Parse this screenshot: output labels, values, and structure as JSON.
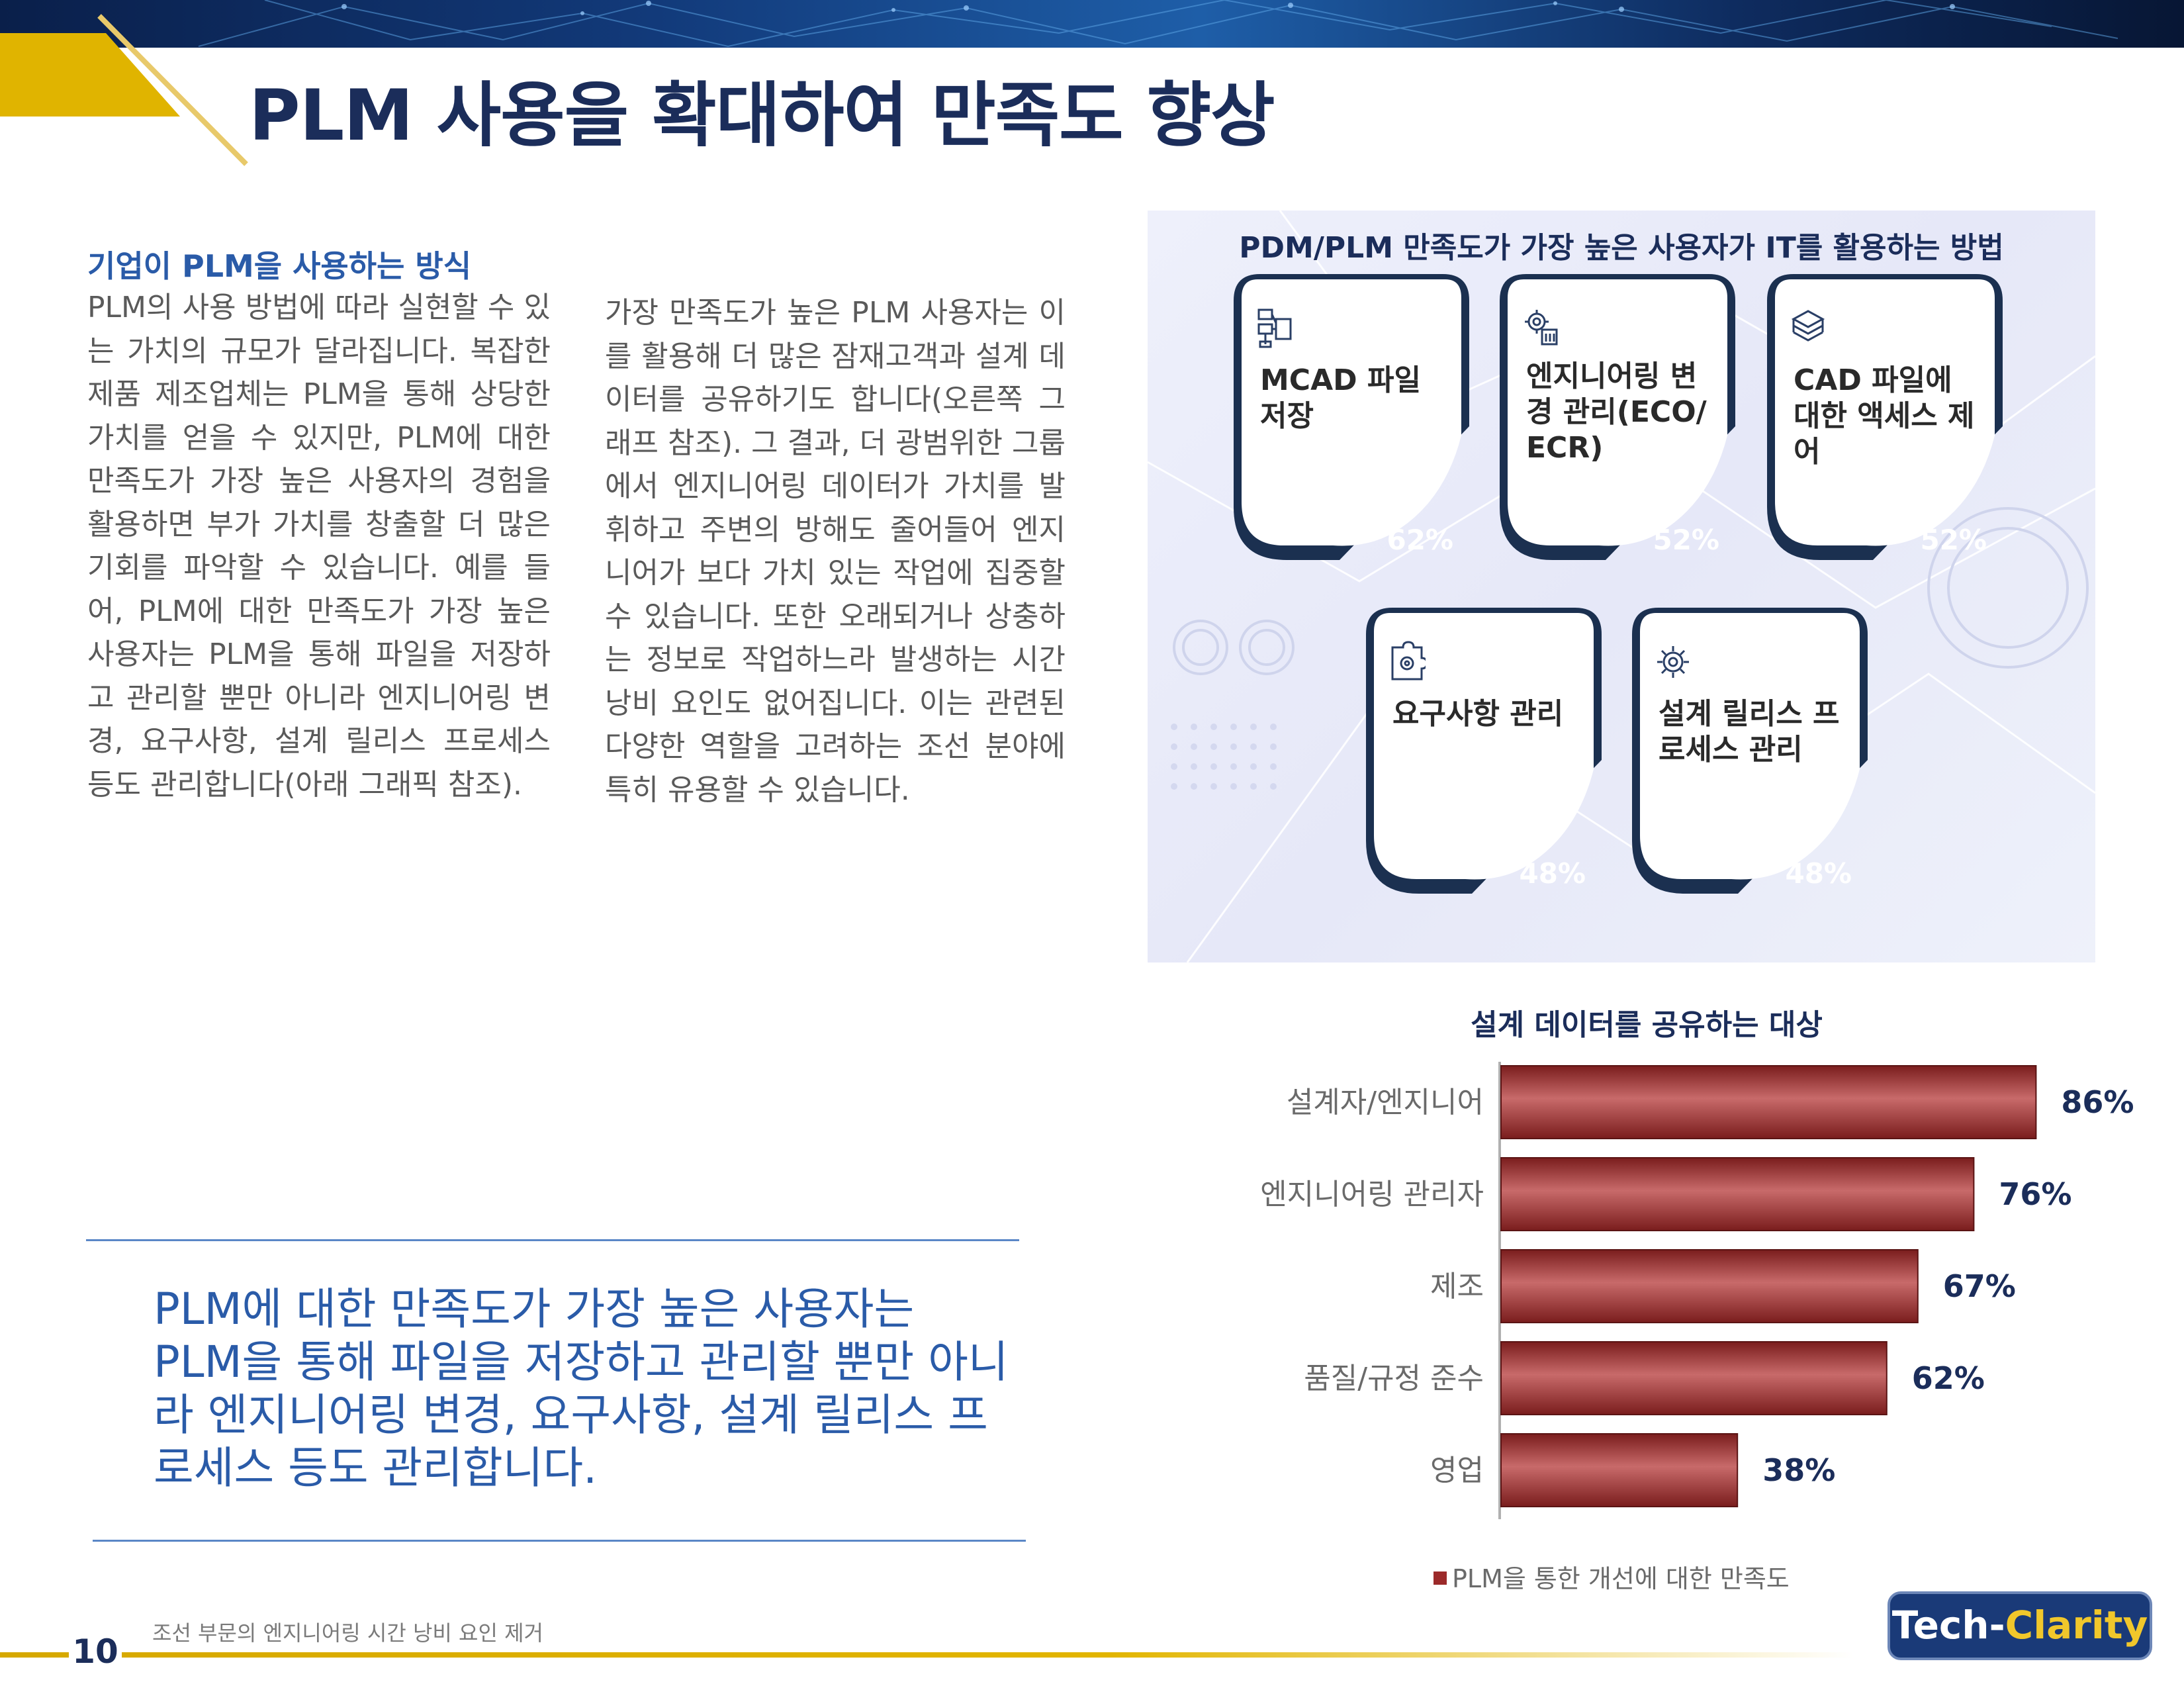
{
  "header": {
    "title": "PLM 사용을 확대하여 만족도 향상"
  },
  "left": {
    "heading": "기업이 PLM을 사용하는 방식",
    "col1": "PLM의 사용 방법에 따라 실현할 수 있는 가치의 규모가 달라집니다. 복잡한 제품 제조업체는 PLM을 통해 상당한 가치를 얻을 수 있지만, PLM에 대한 만족도가 가장 높은 사용자의 경험을 활용하면 부가 가치를 창출할 더 많은 기회를 파악할 수 있습니다. 예를 들어, PLM에 대한 만족도가 가장 높은 사용자는 PLM을 통해 파일을 저장하고 관리할 뿐만 아니라 엔지니어링 변경, 요구사항, 설계 릴리스 프로세스 등도 관리합니다(아래 그래픽 참조).",
    "col2": "가장 만족도가 높은 PLM 사용자는 이를 활용해 더 많은 잠재고객과 설계 데이터를 공유하기도 합니다(오른쪽 그래프 참조). 그 결과, 더 광범위한 그룹에서 엔지니어링 데이터가 가치를 발휘하고 주변의 방해도 줄어들어 엔지니어가 보다 가치 있는 작업에 집중할 수 있습니다. 또한 오래되거나 상충하는 정보로 작업하느라 발생하는 시간 낭비 요인도 없어집니다. 이는 관련된 다양한 역할을 고려하는 조선 분야에 특히 유용할 수 있습니다.",
    "quote": "PLM에 대한 만족도가 가장 높은 사용자는 PLM을 통해 파일을 저장하고 관리할 뿐만 아니라 엔지니어링 변경, 요구사항, 설계 릴리스 프로세스 등도 관리합니다."
  },
  "infographic": {
    "title": "PDM/PLM 만족도가 가장 높은 사용자가 IT를 활용하는 방법",
    "cards": [
      {
        "label": "MCAD 파일 저장",
        "value": "62%",
        "icon": "file-storage-icon"
      },
      {
        "label": "엔지니어링 변경 관리(ECO/ ECR)",
        "value": "52%",
        "icon": "gear-change-icon"
      },
      {
        "label": "CAD 파일에 대한 액세스 제어",
        "value": "52%",
        "icon": "stack-access-icon"
      },
      {
        "label": "요구사항 관리",
        "value": "48%",
        "icon": "puzzle-gear-icon"
      },
      {
        "label": "설계 릴리스 프로세스 관리",
        "value": "48%",
        "icon": "gear-process-icon"
      }
    ]
  },
  "chart_data": {
    "type": "bar",
    "orientation": "horizontal",
    "title": "설계 데이터를 공유하는 대상",
    "categories": [
      "설계자/엔지니어",
      "엔지니어링 관리자",
      "제조",
      "품질/규정 준수",
      "영업"
    ],
    "series": [
      {
        "name": "PLM을 통한 개선에 대한 만족도",
        "values": [
          86,
          76,
          67,
          62,
          38
        ]
      }
    ],
    "value_labels": [
      "86%",
      "76%",
      "67%",
      "62%",
      "38%"
    ],
    "xlim": [
      0,
      100
    ],
    "grid": false,
    "legend": "bottom",
    "colors": {
      "bar": "#9c2a2a"
    }
  },
  "footer": {
    "page_number": "10",
    "doc_title": "조선 부문의 엔지니어링 시간 낭비 요인 제거",
    "logo_part1": "Tech-",
    "logo_part2": "Clarity"
  }
}
